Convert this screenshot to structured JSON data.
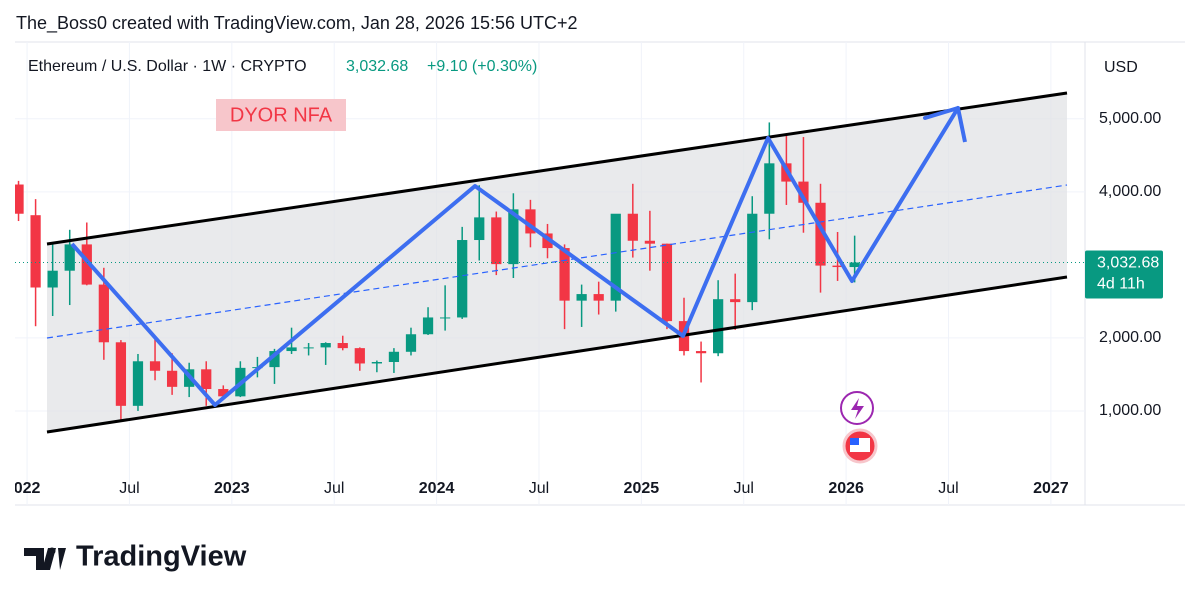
{
  "header": {
    "credit": "The_Boss0 created with TradingView.com, Jan 28, 2026 15:56 UTC+2"
  },
  "footer": {
    "brand": "TradingView"
  },
  "chart_data": {
    "type": "candlestick",
    "title": "Ethereum / U.S. Dollar · 1W · CRYPTO",
    "change_label": "+9.10 (+0.30%)",
    "currency": "USD",
    "annotation": "DYOR NFA",
    "countdown": "4d 11h",
    "last_price": {
      "value": 3032.68,
      "label": "3,032.68"
    },
    "up_color": "#089981",
    "down_color": "#f23645",
    "x": [
      "2021-12",
      "2022-01",
      "2022-02",
      "2022-03",
      "2022-04",
      "2022-05",
      "2022-06",
      "2022-07",
      "2022-08",
      "2022-09",
      "2022-10",
      "2022-11",
      "2022-12",
      "2023-01",
      "2023-02",
      "2023-03",
      "2023-04",
      "2023-05",
      "2023-06",
      "2023-07",
      "2023-08",
      "2023-09",
      "2023-10",
      "2023-11",
      "2023-12",
      "2024-01",
      "2024-02",
      "2024-03",
      "2024-04",
      "2024-05",
      "2024-06",
      "2024-07",
      "2024-08",
      "2024-09",
      "2024-10",
      "2024-11",
      "2024-12",
      "2025-01",
      "2025-02",
      "2025-03",
      "2025-04",
      "2025-05",
      "2025-06",
      "2025-07",
      "2025-08",
      "2025-09",
      "2025-10",
      "2025-11",
      "2025-12",
      "2026-01"
    ],
    "open": [
      4100,
      3680,
      2690,
      2920,
      3280,
      2730,
      1940,
      1070,
      1680,
      1550,
      1330,
      1570,
      1300,
      1200,
      1590,
      1600,
      1820,
      1870,
      1870,
      1930,
      1860,
      1650,
      1670,
      1810,
      2050,
      2280,
      2280,
      3340,
      3650,
      3010,
      3760,
      3430,
      3230,
      2510,
      2600,
      2510,
      3700,
      3330,
      3290,
      2230,
      1820,
      1790,
      2530,
      2490,
      3700,
      4390,
      4140,
      3850,
      2990,
      2970
    ],
    "high": [
      4150,
      3900,
      3280,
      3480,
      3580,
      2960,
      1970,
      1780,
      2030,
      1790,
      1660,
      1680,
      1350,
      1680,
      1740,
      1850,
      2140,
      1930,
      1940,
      2030,
      1870,
      1690,
      1860,
      2140,
      2420,
      2720,
      3520,
      4090,
      3730,
      3980,
      3890,
      3560,
      3280,
      2730,
      2770,
      3680,
      4110,
      3740,
      3290,
      2550,
      1950,
      2790,
      2880,
      3940,
      4950,
      4770,
      4750,
      4110,
      3450,
      3400
    ],
    "low": [
      3600,
      2160,
      2300,
      2450,
      2720,
      1700,
      880,
      1000,
      1420,
      1220,
      1190,
      1070,
      1160,
      1190,
      1460,
      1370,
      1780,
      1760,
      1630,
      1830,
      1550,
      1530,
      1520,
      1760,
      2040,
      2100,
      2260,
      3060,
      2860,
      2820,
      3240,
      3090,
      2120,
      2150,
      2320,
      2360,
      3100,
      2920,
      2120,
      1760,
      1390,
      1750,
      2110,
      2380,
      3350,
      3820,
      3440,
      2620,
      2780,
      2760
    ],
    "close": [
      3700,
      2690,
      2920,
      3280,
      2730,
      1940,
      1070,
      1680,
      1550,
      1330,
      1570,
      1300,
      1200,
      1590,
      1600,
      1820,
      1870,
      1870,
      1930,
      1860,
      1650,
      1670,
      1810,
      2050,
      2280,
      2280,
      3340,
      3650,
      3010,
      3760,
      3430,
      3230,
      2510,
      2600,
      2510,
      3700,
      3330,
      3290,
      2230,
      1820,
      1790,
      2530,
      2490,
      3700,
      4390,
      4140,
      3850,
      2990,
      2970,
      3032.68
    ],
    "xlim": [
      "2021-12",
      "2027-03"
    ],
    "xticks": [
      {
        "value": "2022-01",
        "label": "022"
      },
      {
        "value": "2022-07",
        "label": "Jul"
      },
      {
        "value": "2023-01",
        "label": "2023"
      },
      {
        "value": "2023-07",
        "label": "Jul"
      },
      {
        "value": "2024-01",
        "label": "2024"
      },
      {
        "value": "2024-07",
        "label": "Jul"
      },
      {
        "value": "2025-01",
        "label": "2025"
      },
      {
        "value": "2025-07",
        "label": "Jul"
      },
      {
        "value": "2026-01",
        "label": "2026"
      },
      {
        "value": "2026-07",
        "label": "Jul"
      },
      {
        "value": "2027-01",
        "label": "2027"
      }
    ],
    "ylim": [
      260,
      6010
    ],
    "yticks": [
      {
        "value": 1000,
        "label": "1,000.00"
      },
      {
        "value": 2000,
        "label": "2,000.00"
      },
      {
        "value": 4000,
        "label": "4,000.00"
      },
      {
        "value": 5000,
        "label": "5,000.00"
      }
    ],
    "grid": true
  }
}
